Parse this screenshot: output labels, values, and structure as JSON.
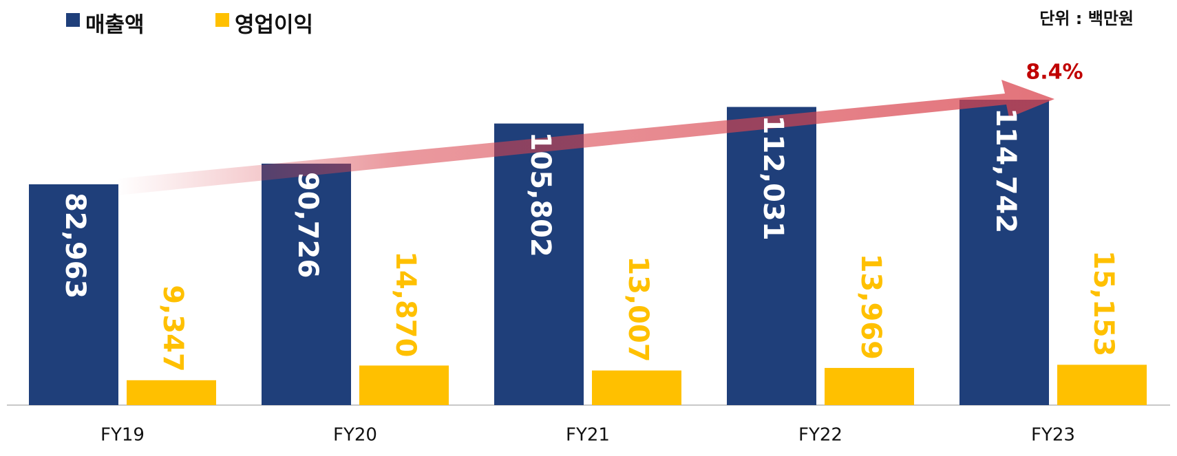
{
  "chart_data": {
    "type": "bar",
    "unit_note": "단위 : 백만원",
    "annotation": "8.4%",
    "categories": [
      "FY19",
      "FY20",
      "FY21",
      "FY22",
      "FY23"
    ],
    "series": [
      {
        "name": "매출액",
        "color": "#1f3f7a",
        "values": [
          82963,
          90726,
          105802,
          112031,
          114742
        ],
        "value_labels": [
          "82,963",
          "90,726",
          "105,802",
          "112,031",
          "114,742"
        ]
      },
      {
        "name": "영업이익",
        "color": "#ffc000",
        "values": [
          9347,
          14870,
          13007,
          13969,
          15153
        ],
        "value_labels": [
          "9,347",
          "14,870",
          "13,007",
          "13,969",
          "15,153"
        ]
      }
    ],
    "legend": "top-left"
  }
}
